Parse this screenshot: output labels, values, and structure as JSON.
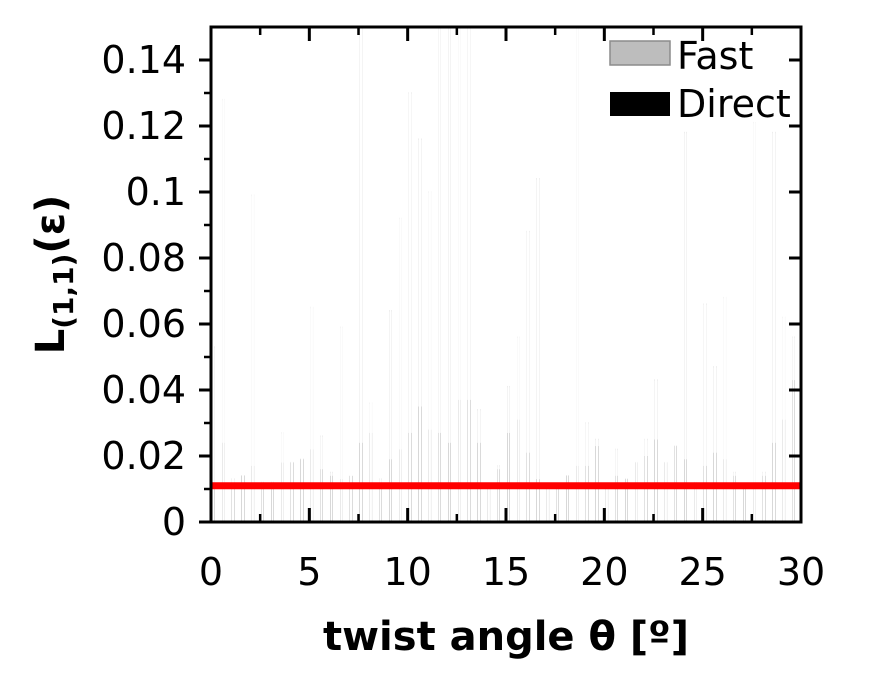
{
  "chart_data": {
    "type": "bar",
    "xlabel": "twist angle θ [º]",
    "ylabel_main": "L",
    "ylabel_sub": "(1,1)",
    "ylabel_suffix": "(ε)",
    "xlim": [
      0,
      30
    ],
    "ylim": [
      0,
      0.15
    ],
    "xticks": [
      0,
      5,
      10,
      15,
      20,
      25,
      30
    ],
    "yticks": [
      0,
      0.02,
      0.04,
      0.06,
      0.08,
      0.1,
      0.12,
      0.14
    ],
    "ytick_labels": [
      "0",
      "0.02",
      "0.04",
      "0.06",
      "0.08",
      "0.1",
      "0.12",
      "0.14"
    ],
    "legend_position": "top-right",
    "bar_step": 0.25,
    "colors": {
      "fast": "#bdbdbd",
      "fast_edge": "#8c8c8c",
      "direct": "#000000",
      "reference_line": "#ff0000"
    },
    "reference_line": {
      "y": 0.011
    },
    "series": [
      {
        "name": "Fast",
        "x": [
          0.0,
          0.5,
          1.0,
          1.5,
          2.0,
          2.5,
          3.0,
          3.5,
          4.0,
          4.5,
          5.0,
          5.5,
          6.0,
          6.5,
          7.0,
          7.5,
          8.0,
          8.5,
          9.0,
          9.5,
          10.0,
          10.5,
          11.0,
          11.5,
          12.0,
          12.5,
          13.0,
          13.5,
          14.0,
          14.5,
          15.0,
          15.5,
          16.0,
          16.5,
          17.0,
          17.5,
          18.0,
          18.5,
          19.0,
          19.5,
          20.0,
          20.5,
          21.0,
          21.5,
          22.0,
          22.5,
          23.0,
          23.5,
          24.0,
          24.5,
          25.0,
          25.5,
          26.0,
          26.5,
          27.0,
          27.5,
          28.0,
          28.5,
          29.0,
          29.5
        ],
        "values": [
          0.053,
          0.128,
          0.013,
          0.014,
          0.099,
          0.012,
          0.012,
          0.027,
          0.018,
          0.019,
          0.065,
          0.026,
          0.015,
          0.059,
          0.013,
          0.15,
          0.036,
          0.013,
          0.064,
          0.092,
          0.13,
          0.116,
          0.1,
          0.15,
          0.15,
          0.15,
          0.15,
          0.034,
          0.011,
          0.017,
          0.041,
          0.056,
          0.088,
          0.104,
          0.011,
          0.01,
          0.014,
          0.15,
          0.03,
          0.025,
          0.011,
          0.022,
          0.013,
          0.018,
          0.025,
          0.043,
          0.018,
          0.023,
          0.118,
          0.012,
          0.066,
          0.047,
          0.068,
          0.015,
          0.011,
          0.121,
          0.015,
          0.118,
          0.062,
          0.056
        ]
      },
      {
        "name": "Direct",
        "x": [
          0.0,
          0.5,
          1.0,
          1.5,
          2.0,
          2.5,
          3.0,
          3.5,
          4.0,
          4.5,
          5.0,
          5.5,
          6.0,
          6.5,
          7.0,
          7.5,
          8.0,
          8.5,
          9.0,
          9.5,
          10.0,
          10.5,
          11.0,
          11.5,
          12.0,
          12.5,
          13.0,
          13.5,
          14.0,
          14.5,
          15.0,
          15.5,
          16.0,
          16.5,
          17.0,
          17.5,
          18.0,
          18.5,
          19.0,
          19.5,
          20.0,
          20.5,
          21.0,
          21.5,
          22.0,
          22.5,
          23.0,
          23.5,
          24.0,
          24.5,
          25.0,
          25.5,
          26.0,
          26.5,
          27.0,
          27.5,
          28.0,
          28.5,
          29.0,
          29.5
        ],
        "values": [
          0.011,
          0.024,
          0.012,
          0.014,
          0.017,
          0.012,
          0.011,
          0.018,
          0.018,
          0.019,
          0.022,
          0.016,
          0.014,
          0.013,
          0.014,
          0.024,
          0.027,
          0.012,
          0.019,
          0.022,
          0.027,
          0.035,
          0.028,
          0.027,
          0.024,
          0.037,
          0.037,
          0.024,
          0.011,
          0.016,
          0.027,
          0.031,
          0.021,
          0.013,
          0.011,
          0.01,
          0.014,
          0.017,
          0.017,
          0.023,
          0.011,
          0.014,
          0.013,
          0.018,
          0.02,
          0.025,
          0.018,
          0.023,
          0.019,
          0.012,
          0.017,
          0.021,
          0.019,
          0.014,
          0.011,
          0.011,
          0.014,
          0.024,
          0.031,
          0.043
        ]
      }
    ]
  }
}
